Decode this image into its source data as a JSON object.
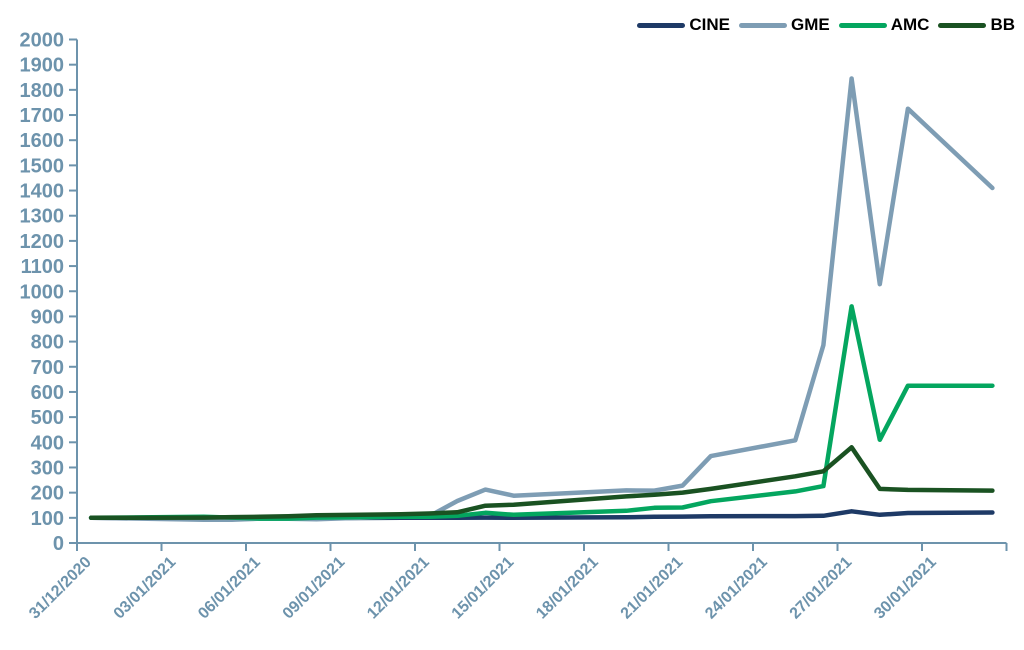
{
  "chart_data": {
    "type": "line",
    "title": "",
    "xlabel": "",
    "ylabel": "",
    "ylim": [
      0,
      2000
    ],
    "y_tick_step": 100,
    "grid": false,
    "legend_position": "top-right",
    "axis_color": "#6d93ac",
    "label_color": "#6d93ac",
    "legend_text_color": "#000000",
    "x_tick_labels": [
      "31/12/2020",
      "03/01/2021",
      "06/01/2021",
      "09/01/2021",
      "12/01/2021",
      "15/01/2021",
      "18/01/2021",
      "21/01/2021",
      "24/01/2021",
      "27/01/2021",
      "30/01/2021"
    ],
    "dates": [
      "31/12/2020",
      "04/01/2021",
      "05/01/2021",
      "06/01/2021",
      "07/01/2021",
      "08/01/2021",
      "11/01/2021",
      "12/01/2021",
      "13/01/2021",
      "14/01/2021",
      "15/01/2021",
      "19/01/2021",
      "20/01/2021",
      "21/01/2021",
      "22/01/2021",
      "25/01/2021",
      "26/01/2021",
      "27/01/2021",
      "28/01/2021",
      "29/01/2021",
      "01/02/2021"
    ],
    "day_offsets": [
      0,
      4,
      5,
      6,
      7,
      8,
      11,
      12,
      13,
      14,
      15,
      19,
      20,
      21,
      22,
      25,
      26,
      27,
      28,
      29,
      32
    ],
    "series": [
      {
        "name": "CINE",
        "color": "#1e3a66",
        "values": [
          100,
          98,
          97,
          97,
          98,
          99,
          100,
          100,
          100,
          101,
          100,
          102,
          104,
          105,
          106,
          107,
          108,
          126,
          112,
          119,
          121
        ]
      },
      {
        "name": "GME",
        "color": "#7e9db4",
        "values": [
          100,
          92,
          92,
          97,
          96,
          94,
          106,
          106,
          167,
          212,
          188,
          209,
          208,
          228,
          345,
          408,
          786,
          1845,
          1028,
          1725,
          1410
        ]
      },
      {
        "name": "AMC",
        "color": "#04a65f",
        "values": [
          100,
          104,
          101,
          97,
          97,
          101,
          104,
          104,
          108,
          120,
          112,
          128,
          140,
          141,
          166,
          205,
          226,
          940,
          410,
          625,
          625
        ]
      },
      {
        "name": "BB",
        "color": "#1a5222",
        "values": [
          100,
          101,
          103,
          104,
          106,
          110,
          114,
          117,
          122,
          148,
          152,
          185,
          192,
          200,
          215,
          265,
          285,
          380,
          215,
          211,
          208
        ]
      }
    ]
  }
}
